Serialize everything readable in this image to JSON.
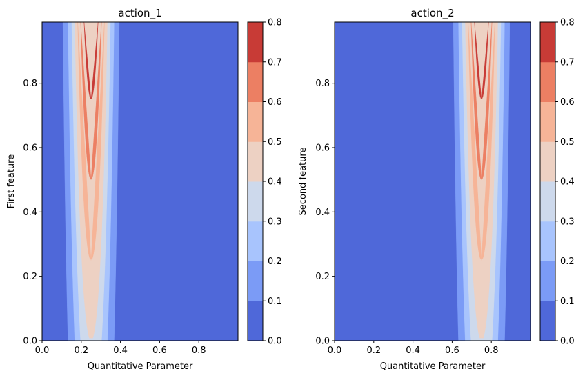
{
  "chart_data": [
    {
      "type": "heatmap",
      "subtype": "filled-contour",
      "title": "action_1",
      "xlabel": "Quantitative Parameter",
      "ylabel": "First feature",
      "xlim": [
        0.0,
        1.0
      ],
      "ylim": [
        0.0,
        0.99
      ],
      "x_ticks": [
        "0.0",
        "0.2",
        "0.4",
        "0.6",
        "0.8"
      ],
      "x_tick_values": [
        0.0,
        0.2,
        0.4,
        0.6,
        0.8
      ],
      "y_ticks": [
        "0.0",
        "0.2",
        "0.4",
        "0.6",
        "0.8"
      ],
      "y_tick_values": [
        0.0,
        0.2,
        0.4,
        0.6,
        0.8
      ],
      "peak_x": 0.25,
      "peak_width": 0.1,
      "peak_scale": 0.4,
      "levels": [
        0.0,
        0.1,
        0.2,
        0.3,
        0.4,
        0.5,
        0.6,
        0.7,
        0.8
      ],
      "colorbar_labels": [
        "0.0",
        "0.1",
        "0.2",
        "0.3",
        "0.4",
        "0.5",
        "0.6",
        "0.7",
        "0.8"
      ]
    },
    {
      "type": "heatmap",
      "subtype": "filled-contour",
      "title": "action_2",
      "xlabel": "Quantitative Parameter",
      "ylabel": "Second feature",
      "xlim": [
        0.0,
        1.0
      ],
      "ylim": [
        0.0,
        0.99
      ],
      "x_ticks": [
        "0.0",
        "0.2",
        "0.4",
        "0.6",
        "0.8"
      ],
      "x_tick_values": [
        0.0,
        0.2,
        0.4,
        0.6,
        0.8
      ],
      "y_ticks": [
        "0.0",
        "0.2",
        "0.4",
        "0.6",
        "0.8"
      ],
      "y_tick_values": [
        0.0,
        0.2,
        0.4,
        0.6,
        0.8
      ],
      "peak_x": 0.75,
      "peak_width": 0.1,
      "peak_scale": 0.4,
      "levels": [
        0.0,
        0.1,
        0.2,
        0.3,
        0.4,
        0.5,
        0.6,
        0.7,
        0.8
      ],
      "colorbar_labels": [
        "0.0",
        "0.1",
        "0.2",
        "0.3",
        "0.4",
        "0.5",
        "0.6",
        "0.7",
        "0.8"
      ]
    }
  ],
  "colormap": {
    "name": "coolwarm",
    "band_colors": [
      "#4f68d9",
      "#7b9bf6",
      "#a8c4fd",
      "#cdd9ec",
      "#edd1c3",
      "#f6b497",
      "#ec7f63",
      "#c83b36"
    ]
  }
}
